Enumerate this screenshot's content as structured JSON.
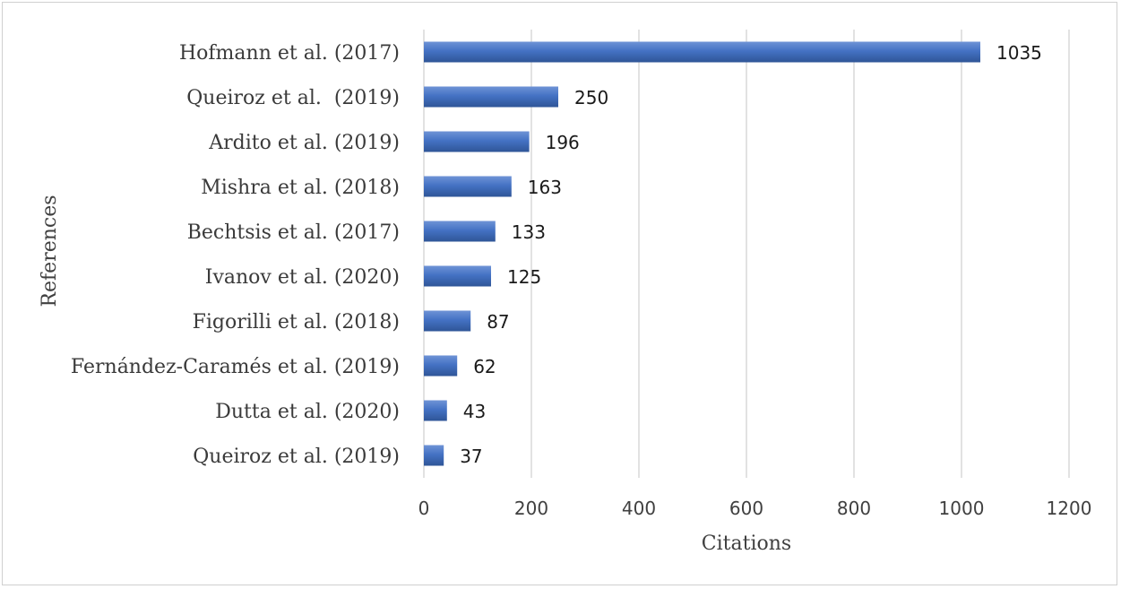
{
  "chart_data": {
    "type": "bar",
    "orientation": "horizontal",
    "categories": [
      "Hofmann et al. (2017)",
      "Queiroz et al.  (2019)",
      "Ardito et al. (2019)",
      "Mishra et al. (2018)",
      "Bechtsis et al. (2017)",
      "Ivanov et al. (2020)",
      "Figorilli et al. (2018)",
      "Fernández-Caramés et al. (2019)",
      "Dutta et al. (2020)",
      "Queiroz et al. (2019)"
    ],
    "values": [
      1035,
      250,
      196,
      163,
      133,
      125,
      87,
      62,
      43,
      37
    ],
    "xlabel": "Citations",
    "ylabel": "References",
    "xlim": [
      0,
      1200
    ],
    "xticks": [
      "0",
      "200",
      "400",
      "600",
      "800",
      "1000",
      "1200"
    ],
    "grid": "vertical",
    "legend": "none",
    "bar_color": "#4472c4",
    "bar_color_dark": "#2f5597",
    "bar_color_light": "#6f93d6"
  }
}
